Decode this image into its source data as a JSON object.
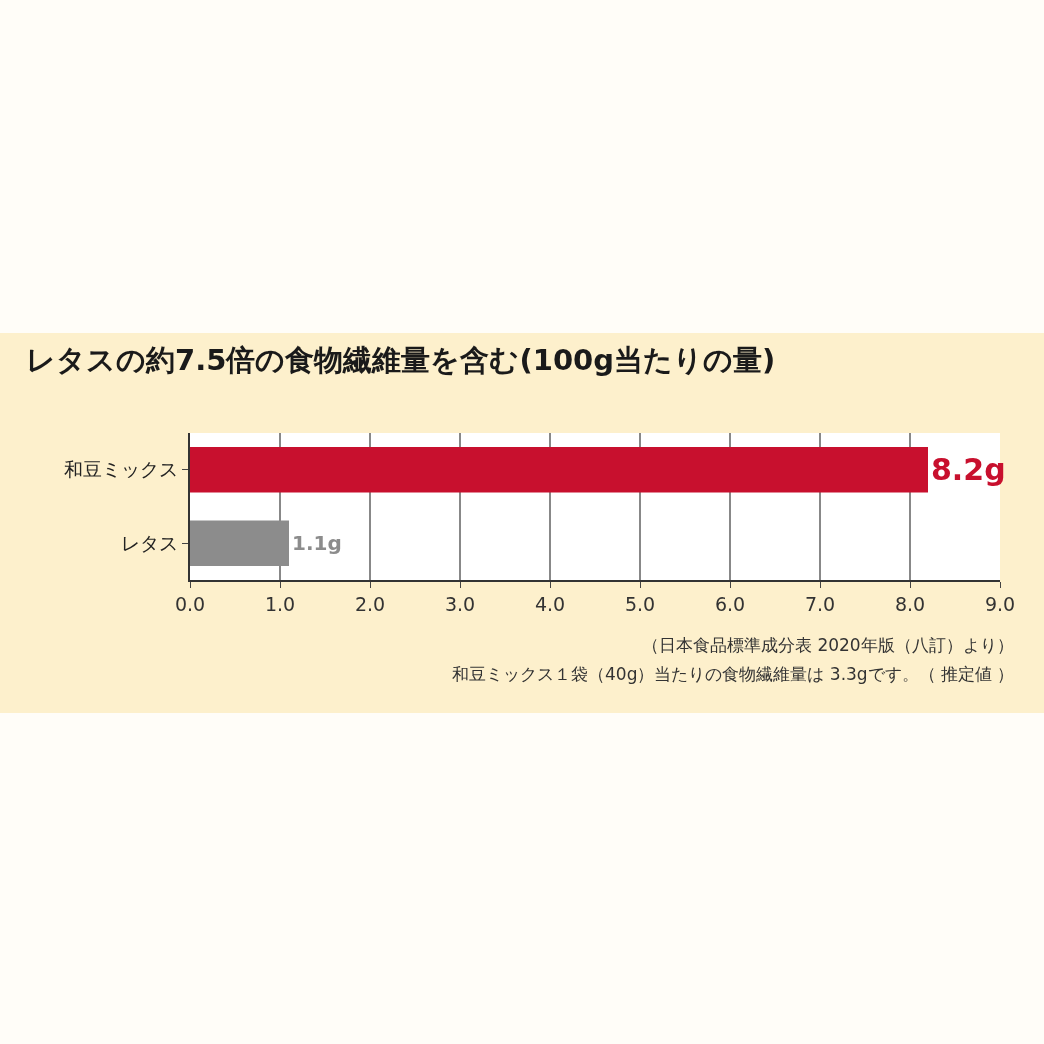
{
  "chart_data": {
    "type": "bar",
    "orientation": "horizontal",
    "title": "レタスの約7.5倍の食物繊維量を含む(100g当たりの量)",
    "categories": [
      "和豆ミックス",
      "レタス"
    ],
    "values": [
      8.2,
      1.1
    ],
    "colors": [
      "#c8102e",
      "#8c8c8c"
    ],
    "value_labels": [
      "8.2g",
      "1.1g"
    ],
    "xlim": [
      0,
      9
    ],
    "xticks": [
      {
        "value": 0,
        "label": "0.0"
      },
      {
        "value": 1,
        "label": "1.0"
      },
      {
        "value": 2,
        "label": "2.0"
      },
      {
        "value": 3,
        "label": "3.0"
      },
      {
        "value": 4,
        "label": "4.0"
      },
      {
        "value": 5,
        "label": "5.0"
      },
      {
        "value": 6,
        "label": "6.0"
      },
      {
        "value": 7,
        "label": "7.0"
      },
      {
        "value": 8,
        "label": "8.0"
      },
      {
        "value": 9,
        "label": "9.0"
      }
    ],
    "grid": "x",
    "legend": false,
    "annotations": [
      "（日本食品標準成分表 2020年版（八訂）より）",
      "和豆ミックス１袋（40g）当たりの食物繊維量は 3.3gです。（ 推定値 ）"
    ]
  }
}
